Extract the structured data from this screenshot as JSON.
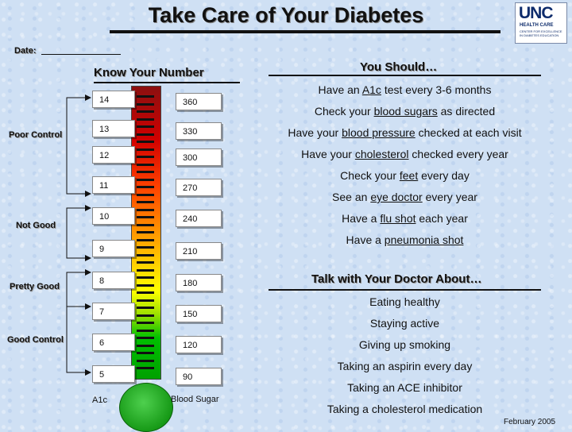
{
  "header": {
    "title": "Take Care of Your Diabetes",
    "logo": {
      "name": "UNC",
      "line2": "HEALTH CARE",
      "line3": "CENTER FOR EXCELLENCE IN DIABETES EDUCATION"
    }
  },
  "date": {
    "label": "Date:"
  },
  "meter": {
    "heading": "Know Your Number",
    "a1c_label": "A1c",
    "blood_sugar_label": "Blood Sugar",
    "rows": [
      {
        "a1c": "14",
        "sugar": "360"
      },
      {
        "a1c": "13",
        "sugar": "330"
      },
      {
        "a1c": "12",
        "sugar": "300"
      },
      {
        "a1c": "11",
        "sugar": "270"
      },
      {
        "a1c": "10",
        "sugar": "240"
      },
      {
        "a1c": "9",
        "sugar": "210"
      },
      {
        "a1c": "8",
        "sugar": "180"
      },
      {
        "a1c": "7",
        "sugar": "150"
      },
      {
        "a1c": "6",
        "sugar": "120"
      },
      {
        "a1c": "5",
        "sugar": "90"
      }
    ],
    "zones": [
      "Poor Control",
      "Not Good",
      "Pretty Good",
      "Good Control"
    ]
  },
  "you_should": {
    "heading": "You Should…",
    "items": [
      {
        "pre": "Have an ",
        "link": "A1c",
        "post": " test every 3-6 months"
      },
      {
        "pre": "Check your ",
        "link": "blood sugars",
        "post": " as directed"
      },
      {
        "pre": "Have your ",
        "link": "blood pressure",
        "post": " checked at each visit"
      },
      {
        "pre": "Have your ",
        "link": "cholesterol",
        "post": " checked every year"
      },
      {
        "pre": "Check your ",
        "link": "feet",
        "post": " every day"
      },
      {
        "pre": "See an ",
        "link": "eye doctor",
        "post": " every year"
      },
      {
        "pre": "Have a ",
        "link": "flu shot",
        "post": " each year"
      },
      {
        "pre": "Have a ",
        "link": "pneumonia shot",
        "post": ""
      }
    ]
  },
  "talk": {
    "heading": "Talk with Your Doctor About…",
    "items": [
      "Eating healthy",
      "Staying active",
      "Giving up smoking",
      "Taking an aspirin every day",
      "Taking an ACE inhibitor",
      "Taking a cholesterol medication"
    ]
  },
  "footer": {
    "date": "February 2005"
  },
  "colors": {
    "scale_top": "#8b1010",
    "scale_mid": "#ffd700",
    "scale_bottom": "#00a000",
    "background": "#cfe0f4"
  }
}
